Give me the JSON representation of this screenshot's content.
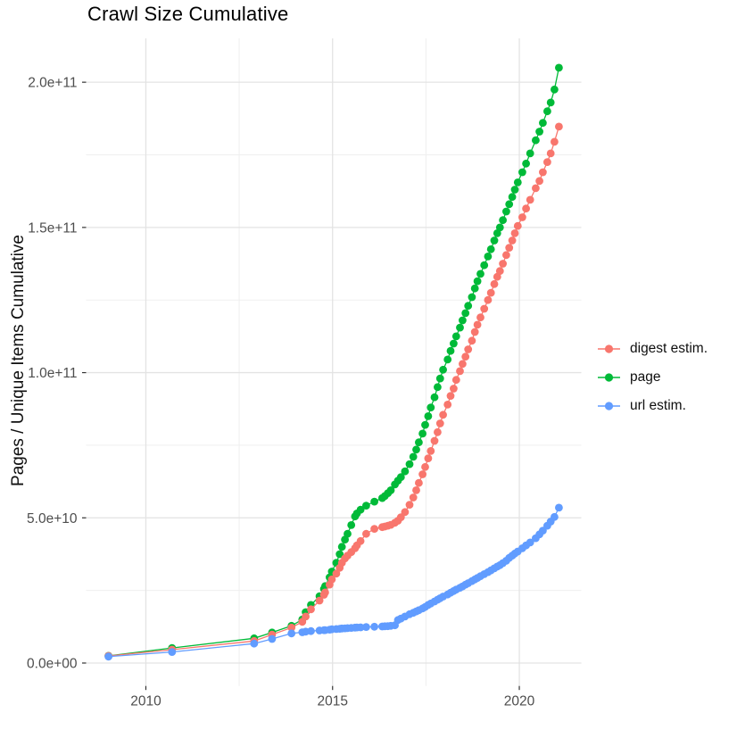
{
  "chart_data": {
    "type": "scatter",
    "title": "Crawl Size Cumulative",
    "xlabel": "",
    "ylabel": "Pages / Unique Items Cumulative",
    "value_unit": "items, stored as billions (1e9)",
    "grid": true,
    "legend_position": "right",
    "xlim": [
      2008.4,
      2021.66
    ],
    "ylim": [
      -7.9,
      215.1
    ],
    "x_ticks": [
      {
        "value": 2010,
        "label": "2010"
      },
      {
        "value": 2015,
        "label": "2015"
      },
      {
        "value": 2020,
        "label": "2020"
      }
    ],
    "x_minor_ticks": [
      2012.5,
      2017.5
    ],
    "y_ticks": [
      {
        "value": 0,
        "label": "0.0e+00"
      },
      {
        "value": 50,
        "label": "5.0e+10"
      },
      {
        "value": 100,
        "label": "1.0e+11"
      },
      {
        "value": 150,
        "label": "1.5e+11"
      },
      {
        "value": 200,
        "label": "2.0e+11"
      }
    ],
    "y_minor_ticks": [
      25,
      75,
      125,
      175
    ],
    "colors": {
      "background": "#ffffff",
      "grid_major": "#e3e3e3",
      "grid_minor": "#efefef",
      "tick_mark": "#333333",
      "tick_label": "#4d4d4d",
      "title_text": "#000000"
    },
    "draw_order": [
      1,
      0,
      2
    ],
    "x": [
      2009.0,
      2010.7,
      2012.9,
      2013.38,
      2013.9,
      2014.19,
      2014.28,
      2014.42,
      2014.65,
      2014.77,
      2014.8,
      2014.92,
      2014.98,
      2015.1,
      2015.19,
      2015.25,
      2015.33,
      2015.4,
      2015.5,
      2015.6,
      2015.65,
      2015.75,
      2015.9,
      2016.12,
      2016.33,
      2016.4,
      2016.48,
      2016.56,
      2016.67,
      2016.75,
      2016.83,
      2016.94,
      2017.06,
      2017.16,
      2017.24,
      2017.31,
      2017.41,
      2017.48,
      2017.56,
      2017.63,
      2017.73,
      2017.81,
      2017.88,
      2017.96,
      2018.08,
      2018.16,
      2018.24,
      2018.31,
      2018.41,
      2018.48,
      2018.56,
      2018.63,
      2018.73,
      2018.81,
      2018.88,
      2018.96,
      2019.06,
      2019.16,
      2019.24,
      2019.33,
      2019.41,
      2019.48,
      2019.56,
      2019.65,
      2019.73,
      2019.81,
      2019.88,
      2019.96,
      2020.08,
      2020.18,
      2020.29,
      2020.44,
      2020.54,
      2020.63,
      2020.75,
      2020.84,
      2020.94,
      2021.06
    ],
    "series": [
      {
        "name": "digest estim.",
        "color": "#F8766D",
        "values": [
          2.45,
          4.6,
          7.6,
          9.8,
          12.2,
          14.2,
          16.0,
          18.5,
          21.5,
          23.5,
          24.3,
          27.0,
          28.8,
          30.8,
          32.8,
          34.5,
          36.0,
          37.0,
          38.2,
          39.5,
          40.5,
          42.0,
          44.5,
          46.2,
          46.8,
          47.0,
          47.3,
          47.6,
          48.3,
          49.0,
          50.2,
          52.0,
          54.5,
          57.0,
          59.5,
          62.0,
          65.0,
          67.5,
          70.5,
          73.0,
          76.5,
          79.5,
          82.5,
          85.5,
          89.0,
          92.0,
          94.5,
          97.5,
          100.5,
          103.0,
          105.5,
          108.0,
          111.0,
          114.0,
          116.5,
          119.0,
          122.0,
          125.0,
          127.5,
          130.5,
          133.0,
          135.0,
          137.5,
          140.5,
          143.0,
          145.5,
          148.0,
          150.5,
          153.5,
          156.5,
          159.5,
          163.5,
          166.0,
          169.0,
          172.5,
          175.5,
          179.5,
          184.7
        ]
      },
      {
        "name": "page",
        "color": "#00BA38",
        "values": [
          2.5,
          5.2,
          8.5,
          10.5,
          12.8,
          15.0,
          17.5,
          20.0,
          23.0,
          25.5,
          26.5,
          29.5,
          31.5,
          34.5,
          37.5,
          40.0,
          42.5,
          44.5,
          47.5,
          50.5,
          51.5,
          52.8,
          54.2,
          55.6,
          56.8,
          57.5,
          58.5,
          59.5,
          61.5,
          62.8,
          64.0,
          66.0,
          68.5,
          71.0,
          73.5,
          76.0,
          79.0,
          82.0,
          85.0,
          88.0,
          91.5,
          95.0,
          98.0,
          101.0,
          104.5,
          107.5,
          110.0,
          112.5,
          115.5,
          118.0,
          120.5,
          123.0,
          126.0,
          129.0,
          131.5,
          134.0,
          137.0,
          140.0,
          142.5,
          145.5,
          148.0,
          150.0,
          152.5,
          155.5,
          158.0,
          160.5,
          163.0,
          165.5,
          169.0,
          172.0,
          175.5,
          180.0,
          183.0,
          186.0,
          190.0,
          193.0,
          197.5,
          205.0
        ]
      },
      {
        "name": "url estim.",
        "color": "#619CFF",
        "values": [
          2.2,
          3.8,
          6.7,
          8.3,
          10.2,
          10.6,
          10.8,
          11.0,
          11.2,
          11.3,
          11.35,
          11.5,
          11.6,
          11.7,
          11.8,
          11.9,
          11.95,
          12.0,
          12.1,
          12.2,
          12.25,
          12.3,
          12.4,
          12.5,
          12.6,
          12.65,
          12.7,
          12.8,
          13.0,
          14.8,
          15.3,
          16.0,
          16.8,
          17.3,
          17.8,
          18.2,
          18.8,
          19.3,
          20.0,
          20.5,
          21.2,
          21.8,
          22.3,
          22.9,
          23.6,
          24.2,
          24.8,
          25.3,
          25.9,
          26.4,
          27.0,
          27.5,
          28.2,
          28.8,
          29.3,
          29.9,
          30.6,
          31.3,
          31.9,
          32.6,
          33.2,
          33.7,
          34.4,
          35.2,
          36.2,
          37.0,
          37.7,
          38.4,
          39.5,
          40.5,
          41.5,
          43.0,
          44.3,
          45.6,
          47.3,
          48.7,
          50.3,
          53.5
        ]
      }
    ]
  }
}
